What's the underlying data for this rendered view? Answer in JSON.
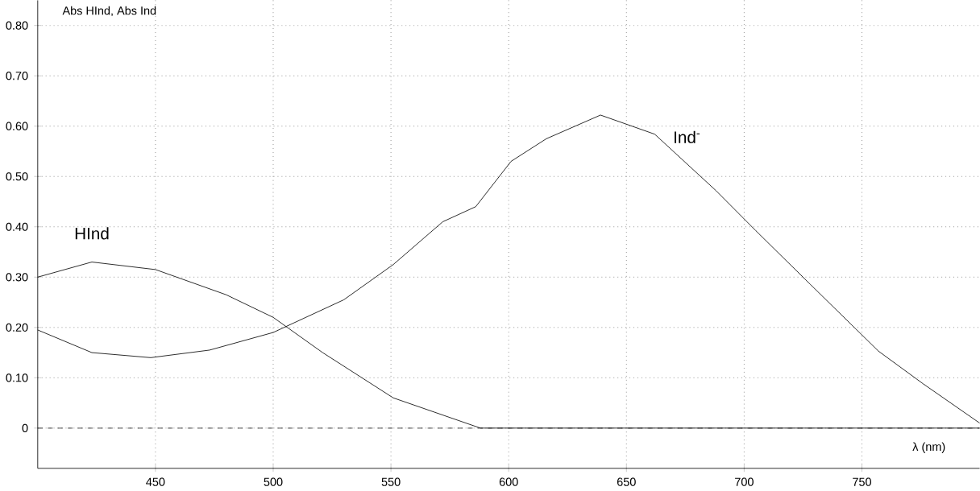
{
  "chart_data": {
    "type": "line",
    "ylabel": "Abs HInd, Abs Ind",
    "xlabel": "λ (nm)",
    "xlim": [
      400,
      800
    ],
    "ylim": [
      -0.08,
      0.85
    ],
    "xticks": [
      450,
      500,
      550,
      600,
      650,
      700,
      750
    ],
    "yticks": [
      0,
      {
        "value": 0.1,
        "label": "0.10"
      },
      {
        "value": 0.2,
        "label": "0.20"
      },
      {
        "value": 0.3,
        "label": "0.30"
      },
      {
        "value": 0.4,
        "label": "0.40"
      },
      {
        "value": 0.5,
        "label": "0.50"
      },
      {
        "value": 0.6,
        "label": "0.60"
      },
      {
        "value": 0.7,
        "label": "0.70"
      },
      {
        "value": 0.8,
        "label": "0.80"
      }
    ],
    "grid": true,
    "marker": "none",
    "line_style": "solid",
    "series": [
      {
        "name": "HInd",
        "color": "#000000",
        "x": [
          400,
          423,
          450,
          480,
          500,
          521,
          551,
          588,
          800
        ],
        "values": [
          0.3,
          0.33,
          0.315,
          0.265,
          0.22,
          0.15,
          0.06,
          0,
          0
        ]
      },
      {
        "name": "Ind$^{-}$",
        "color": "#000000",
        "x": [
          400,
          423,
          448,
          473,
          500,
          530,
          551,
          572,
          586,
          601,
          616,
          639,
          662,
          688,
          705,
          728,
          757,
          776,
          800
        ],
        "values": [
          0.195,
          0.15,
          0.14,
          0.155,
          0.19,
          0.255,
          0.325,
          0.41,
          0.44,
          0.53,
          0.575,
          0.622,
          0.584,
          0.472,
          0.392,
          0.286,
          0.153,
          0.088,
          0.01
        ]
      }
    ],
    "ref_lines": [
      {
        "axis": "y",
        "value": 0,
        "line_style": "dashed",
        "color": "#000000"
      }
    ]
  }
}
